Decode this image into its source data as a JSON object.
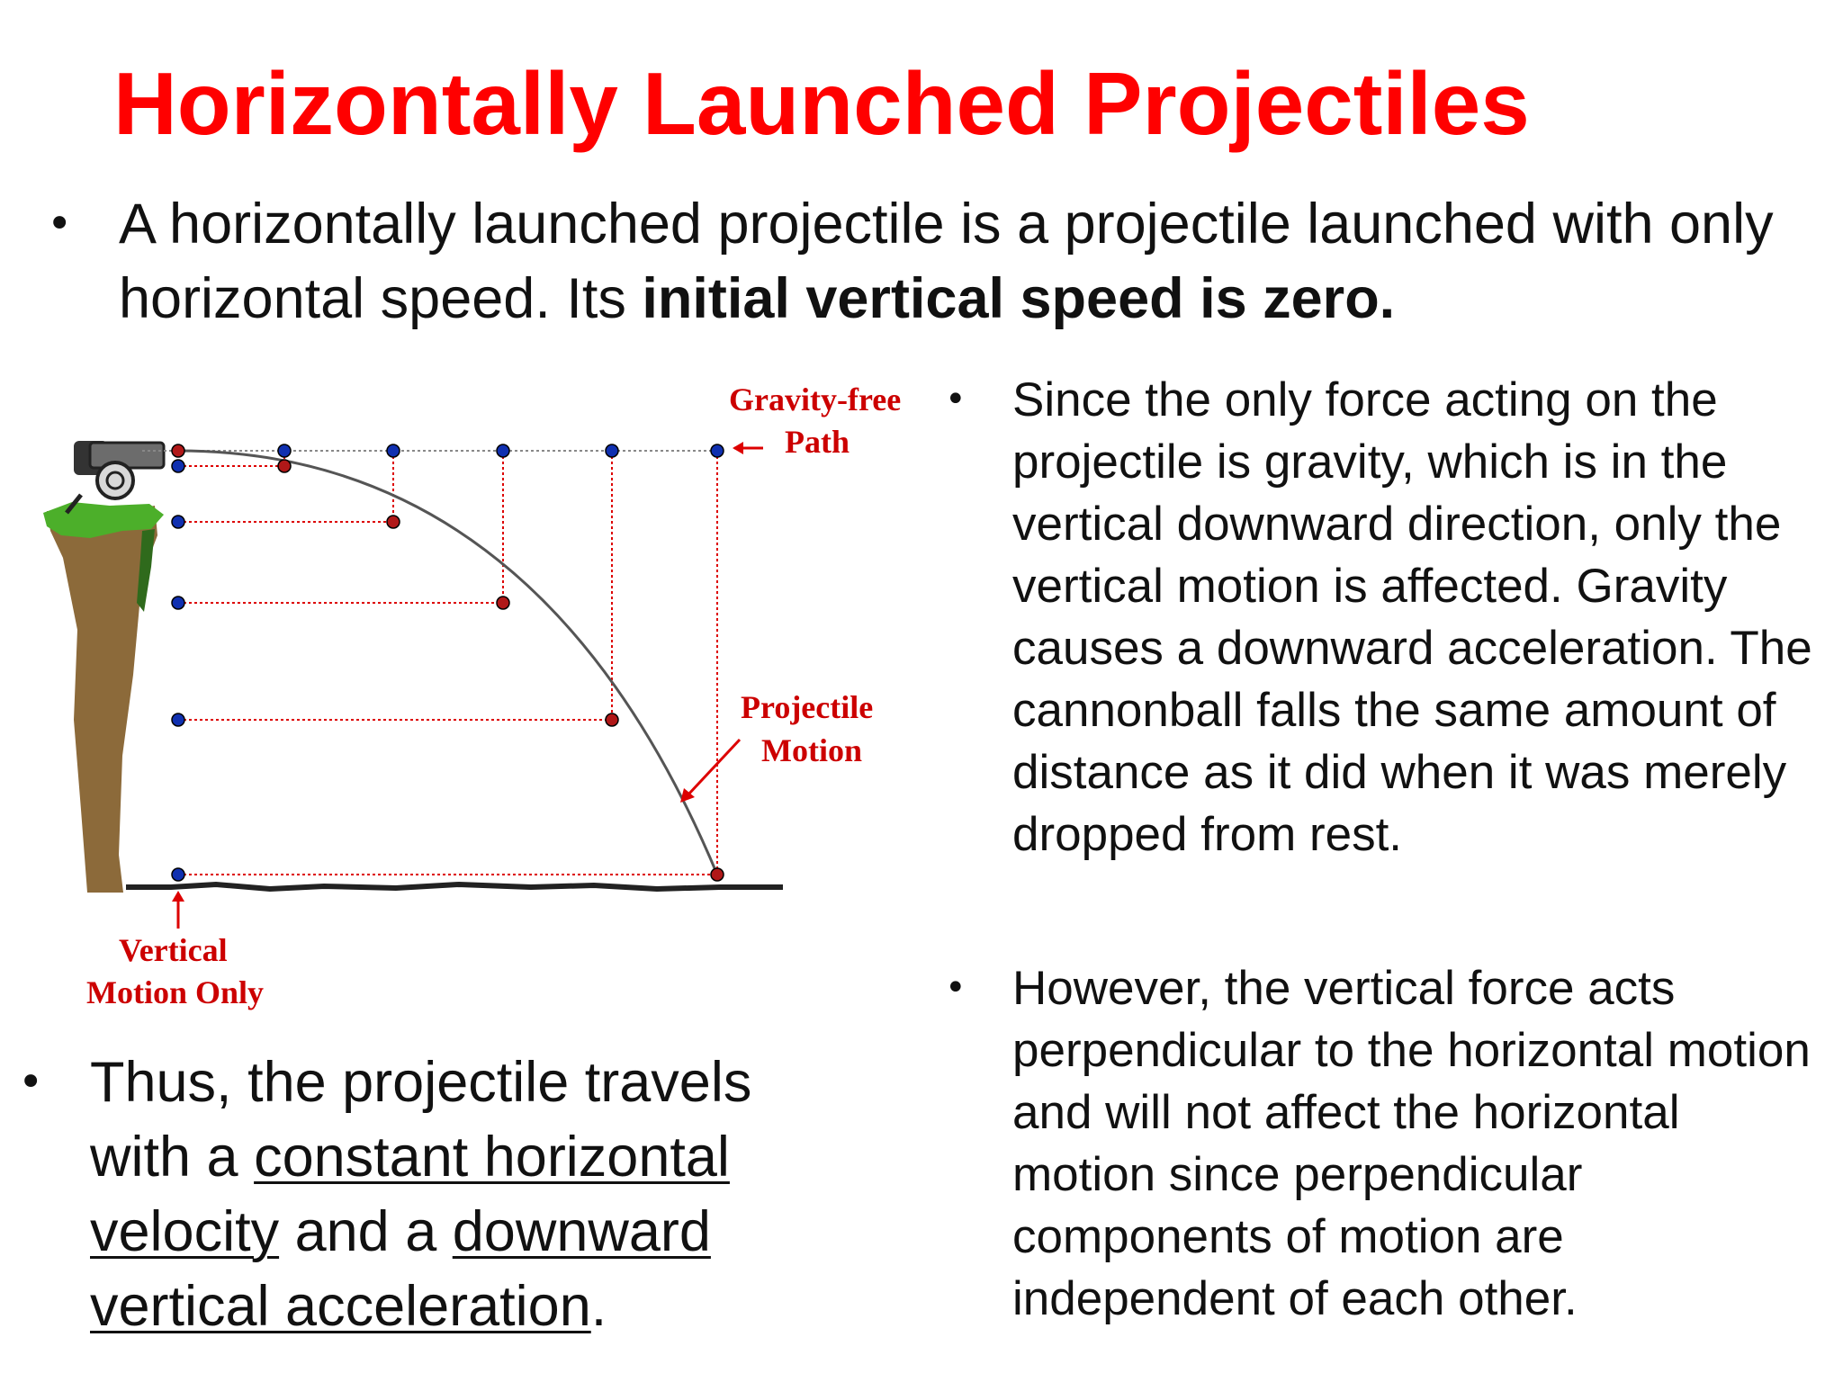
{
  "title": "Horizontally Launched Projectiles",
  "intro": {
    "part1": "A horizontally launched projectile is a projectile launched with only horizontal speed. Its ",
    "bold": "initial vertical speed is zero."
  },
  "right_bullets": {
    "b1": "Since the only force acting on the projectile is  gravity,  which is in the vertical downward direction, only the vertical motion is affected. Gravity causes a downward acceleration. The cannonball falls the same amount of distance as it did when it was merely dropped from rest.",
    "b2": "However, the vertical force acts perpendicular to the horizontal motion and will not affect the horizontal motion since perpendicular components of motion are independent of each other."
  },
  "left_bullet": {
    "t1": "Thus, the projectile travels with a ",
    "u1": "constant horizontal velocity",
    "t2": " and a ",
    "u2": "downward vertical acceleration",
    "t3": "."
  },
  "diagram": {
    "label_gravity_free_1": "Gravity-free",
    "label_gravity_free_2": "Path",
    "label_projectile_1": "Projectile",
    "label_projectile_2": "Motion",
    "label_vertical_1": "Vertical",
    "label_vertical_2": "Motion Only"
  },
  "colors": {
    "title": "#ff0000",
    "label_red": "#cc0000",
    "dot_blue": "#1030b0",
    "dot_red": "#b01818",
    "cliff_brown": "#8c6a3a",
    "grass_green": "#4caf2a"
  }
}
